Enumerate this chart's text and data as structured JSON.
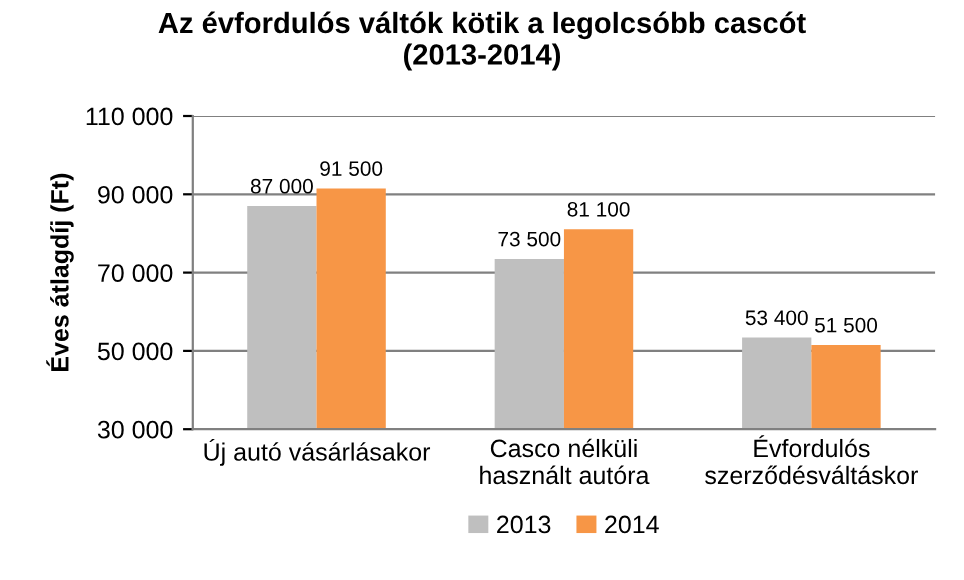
{
  "chart_data": {
    "type": "bar",
    "title": "Az évfordulós váltók kötik a legolcsóbb cascót\n(2013-2014)",
    "ylabel": "Éves átlagdíj (Ft)",
    "categories": [
      "Új autó vásárlásakor",
      "Casco nélküli\nhasznált autóra",
      "Évfordulós\nszerződésváltáskor"
    ],
    "series": [
      {
        "name": "2013",
        "color": "#bfbfbf",
        "values": [
          87000,
          73500,
          53400
        ],
        "value_labels": [
          "87 000",
          "73 500",
          "53 400"
        ]
      },
      {
        "name": "2014",
        "color": "#f79646",
        "values": [
          91500,
          81100,
          51500
        ],
        "value_labels": [
          "91 500",
          "81 100",
          "51 500"
        ]
      }
    ],
    "ylim": [
      30000,
      110000
    ],
    "yticks": [
      {
        "value": 30000,
        "label": "30 000"
      },
      {
        "value": 50000,
        "label": "50 000"
      },
      {
        "value": 70000,
        "label": "70 000"
      },
      {
        "value": 90000,
        "label": "90 000"
      },
      {
        "value": 110000,
        "label": "110 000"
      }
    ],
    "grid": "y",
    "legend": "bottom"
  }
}
